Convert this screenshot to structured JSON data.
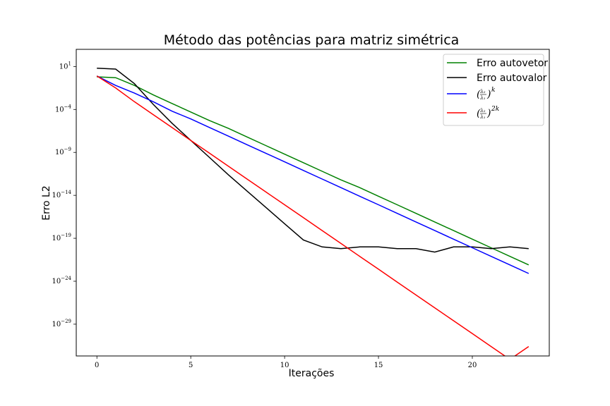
{
  "chart_data": {
    "type": "line",
    "title": "Método das potências para matriz simétrica",
    "xlabel": "Iterações",
    "ylabel": "Erro L2",
    "xlim": [
      -1.1,
      24.1
    ],
    "ylim_exp": [
      -32.7,
      3.0
    ],
    "yscale": "log",
    "grid": false,
    "legend_position": "top-right",
    "x_ticks": [
      0,
      5,
      10,
      15,
      20
    ],
    "y_ticks_exp": [
      1,
      -4,
      -9,
      -14,
      -19,
      -24,
      -29
    ],
    "x": [
      0,
      1,
      2,
      3,
      4,
      5,
      6,
      7,
      8,
      9,
      10,
      11,
      12,
      13,
      14,
      15,
      16,
      17,
      18,
      19,
      20,
      21,
      22,
      23
    ],
    "series": [
      {
        "name": "Erro autovetor",
        "color": "#008000",
        "log10_values": [
          -0.2,
          -0.3,
          -1.2,
          -2.3,
          -3.3,
          -4.3,
          -5.3,
          -6.2,
          -7.2,
          -8.2,
          -9.2,
          -10.2,
          -11.2,
          -12.2,
          -13.1,
          -14.1,
          -15.1,
          -16.1,
          -17.1,
          -18.1,
          -19.1,
          -20.1,
          -21.1,
          -22.1
        ]
      },
      {
        "name": "Erro autovalor",
        "color": "#000000",
        "log10_values": [
          0.8,
          0.7,
          -1.0,
          -3.4,
          -5.6,
          -7.6,
          -9.6,
          -11.6,
          -13.5,
          -15.4,
          -17.3,
          -19.2,
          -20.0,
          -20.2,
          -20.0,
          -20.0,
          -20.2,
          -20.2,
          -20.6,
          -20.0,
          -20.0,
          -20.2,
          -20.0,
          -20.2
        ]
      },
      {
        "name": "(λ2/λ1)^k",
        "color": "#0000ff",
        "log10_values": [
          -0.1,
          -1.2,
          -2.1,
          -3.1,
          -4.2,
          -5.1,
          -6.1,
          -7.1,
          -8.1,
          -9.1,
          -10.1,
          -11.1,
          -12.1,
          -13.1,
          -14.1,
          -15.1,
          -16.1,
          -17.1,
          -18.1,
          -19.1,
          -20.1,
          -21.1,
          -22.1,
          -23.1
        ]
      },
      {
        "name": "(λ2/λ1)^2k",
        "color": "#ff0000",
        "log10_values": [
          -0.1,
          -1.5,
          -3.1,
          -4.6,
          -6.1,
          -7.6,
          -9.1,
          -10.6,
          -12.1,
          -13.6,
          -15.1,
          -16.6,
          -18.1,
          -19.6,
          -21.1,
          -22.6,
          -24.1,
          -25.6,
          -27.1,
          -28.6,
          -30.1,
          -31.6,
          -33.1,
          -31.6
        ]
      }
    ],
    "legend": {
      "entries": [
        {
          "text": "Erro autovetor",
          "color": "#008000"
        },
        {
          "text": "Erro autovalor",
          "color": "#000000"
        },
        {
          "math": "k",
          "color": "#0000ff"
        },
        {
          "math": "2k",
          "color": "#ff0000"
        }
      ]
    }
  }
}
